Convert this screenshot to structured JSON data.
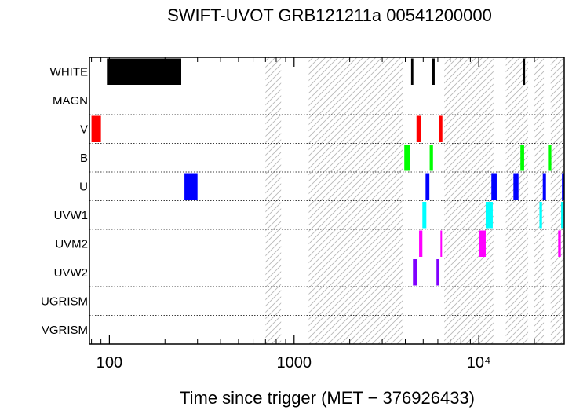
{
  "chart_data": {
    "type": "timeline",
    "title": "SWIFT-UVOT GRB121211a 00541200000",
    "xlabel": "Time since trigger (MET − 376926433)",
    "xscale": "log",
    "xlim": [
      78,
      29000
    ],
    "x_ticks": [
      {
        "value": 100,
        "label": "100"
      },
      {
        "value": 1000,
        "label": "1000"
      },
      {
        "value": 10000,
        "label": "10⁴"
      }
    ],
    "rows": [
      "WHITE",
      "MAGN",
      "V",
      "B",
      "U",
      "UVW1",
      "UVM2",
      "UVW2",
      "UGRISM",
      "VGRISM"
    ],
    "gaps": [
      [
        700,
        850
      ],
      [
        1200,
        3900
      ],
      [
        6500,
        12000
      ],
      [
        14000,
        18500
      ],
      [
        20000,
        22500
      ],
      [
        24500,
        29000
      ]
    ],
    "exposures": [
      {
        "filter": "WHITE",
        "start": 97,
        "end": 245,
        "color": "#000000"
      },
      {
        "filter": "WHITE",
        "start": 4300,
        "end": 4420,
        "color": "#000000"
      },
      {
        "filter": "WHITE",
        "start": 5600,
        "end": 5770,
        "color": "#000000"
      },
      {
        "filter": "WHITE",
        "start": 17300,
        "end": 17800,
        "color": "#000000"
      },
      {
        "filter": "V",
        "start": 80,
        "end": 90,
        "color": "#ff0000"
      },
      {
        "filter": "V",
        "start": 4600,
        "end": 4850,
        "color": "#ff0000"
      },
      {
        "filter": "V",
        "start": 6100,
        "end": 6350,
        "color": "#ff0000"
      },
      {
        "filter": "B",
        "start": 3950,
        "end": 4250,
        "color": "#00ff00"
      },
      {
        "filter": "B",
        "start": 5420,
        "end": 5650,
        "color": "#00ff00"
      },
      {
        "filter": "B",
        "start": 16800,
        "end": 17600,
        "color": "#00ff00"
      },
      {
        "filter": "B",
        "start": 23700,
        "end": 24700,
        "color": "#00ff00"
      },
      {
        "filter": "U",
        "start": 255,
        "end": 300,
        "color": "#0000ff"
      },
      {
        "filter": "U",
        "start": 5150,
        "end": 5400,
        "color": "#0000ff"
      },
      {
        "filter": "U",
        "start": 11700,
        "end": 12500,
        "color": "#0000ff"
      },
      {
        "filter": "U",
        "start": 15400,
        "end": 16400,
        "color": "#0000ff"
      },
      {
        "filter": "U",
        "start": 22200,
        "end": 23100,
        "color": "#0000ff"
      },
      {
        "filter": "U",
        "start": 28200,
        "end": 29000,
        "color": "#0000ff"
      },
      {
        "filter": "UVW1",
        "start": 4950,
        "end": 5200,
        "color": "#00ffff"
      },
      {
        "filter": "UVW1",
        "start": 10900,
        "end": 11900,
        "color": "#00ffff"
      },
      {
        "filter": "UVW1",
        "start": 21300,
        "end": 22000,
        "color": "#00ffff"
      },
      {
        "filter": "UVW1",
        "start": 27900,
        "end": 28800,
        "color": "#00ffff"
      },
      {
        "filter": "UVM2",
        "start": 4750,
        "end": 4950,
        "color": "#ff00ff"
      },
      {
        "filter": "UVM2",
        "start": 6200,
        "end": 6280,
        "color": "#ff00ff"
      },
      {
        "filter": "UVM2",
        "start": 10000,
        "end": 10900,
        "color": "#ff00ff"
      },
      {
        "filter": "UVM2",
        "start": 26900,
        "end": 27800,
        "color": "#ff00ff"
      },
      {
        "filter": "UVW2",
        "start": 4400,
        "end": 4650,
        "color": "#8000ff"
      },
      {
        "filter": "UVW2",
        "start": 5900,
        "end": 6100,
        "color": "#8000ff"
      }
    ]
  }
}
